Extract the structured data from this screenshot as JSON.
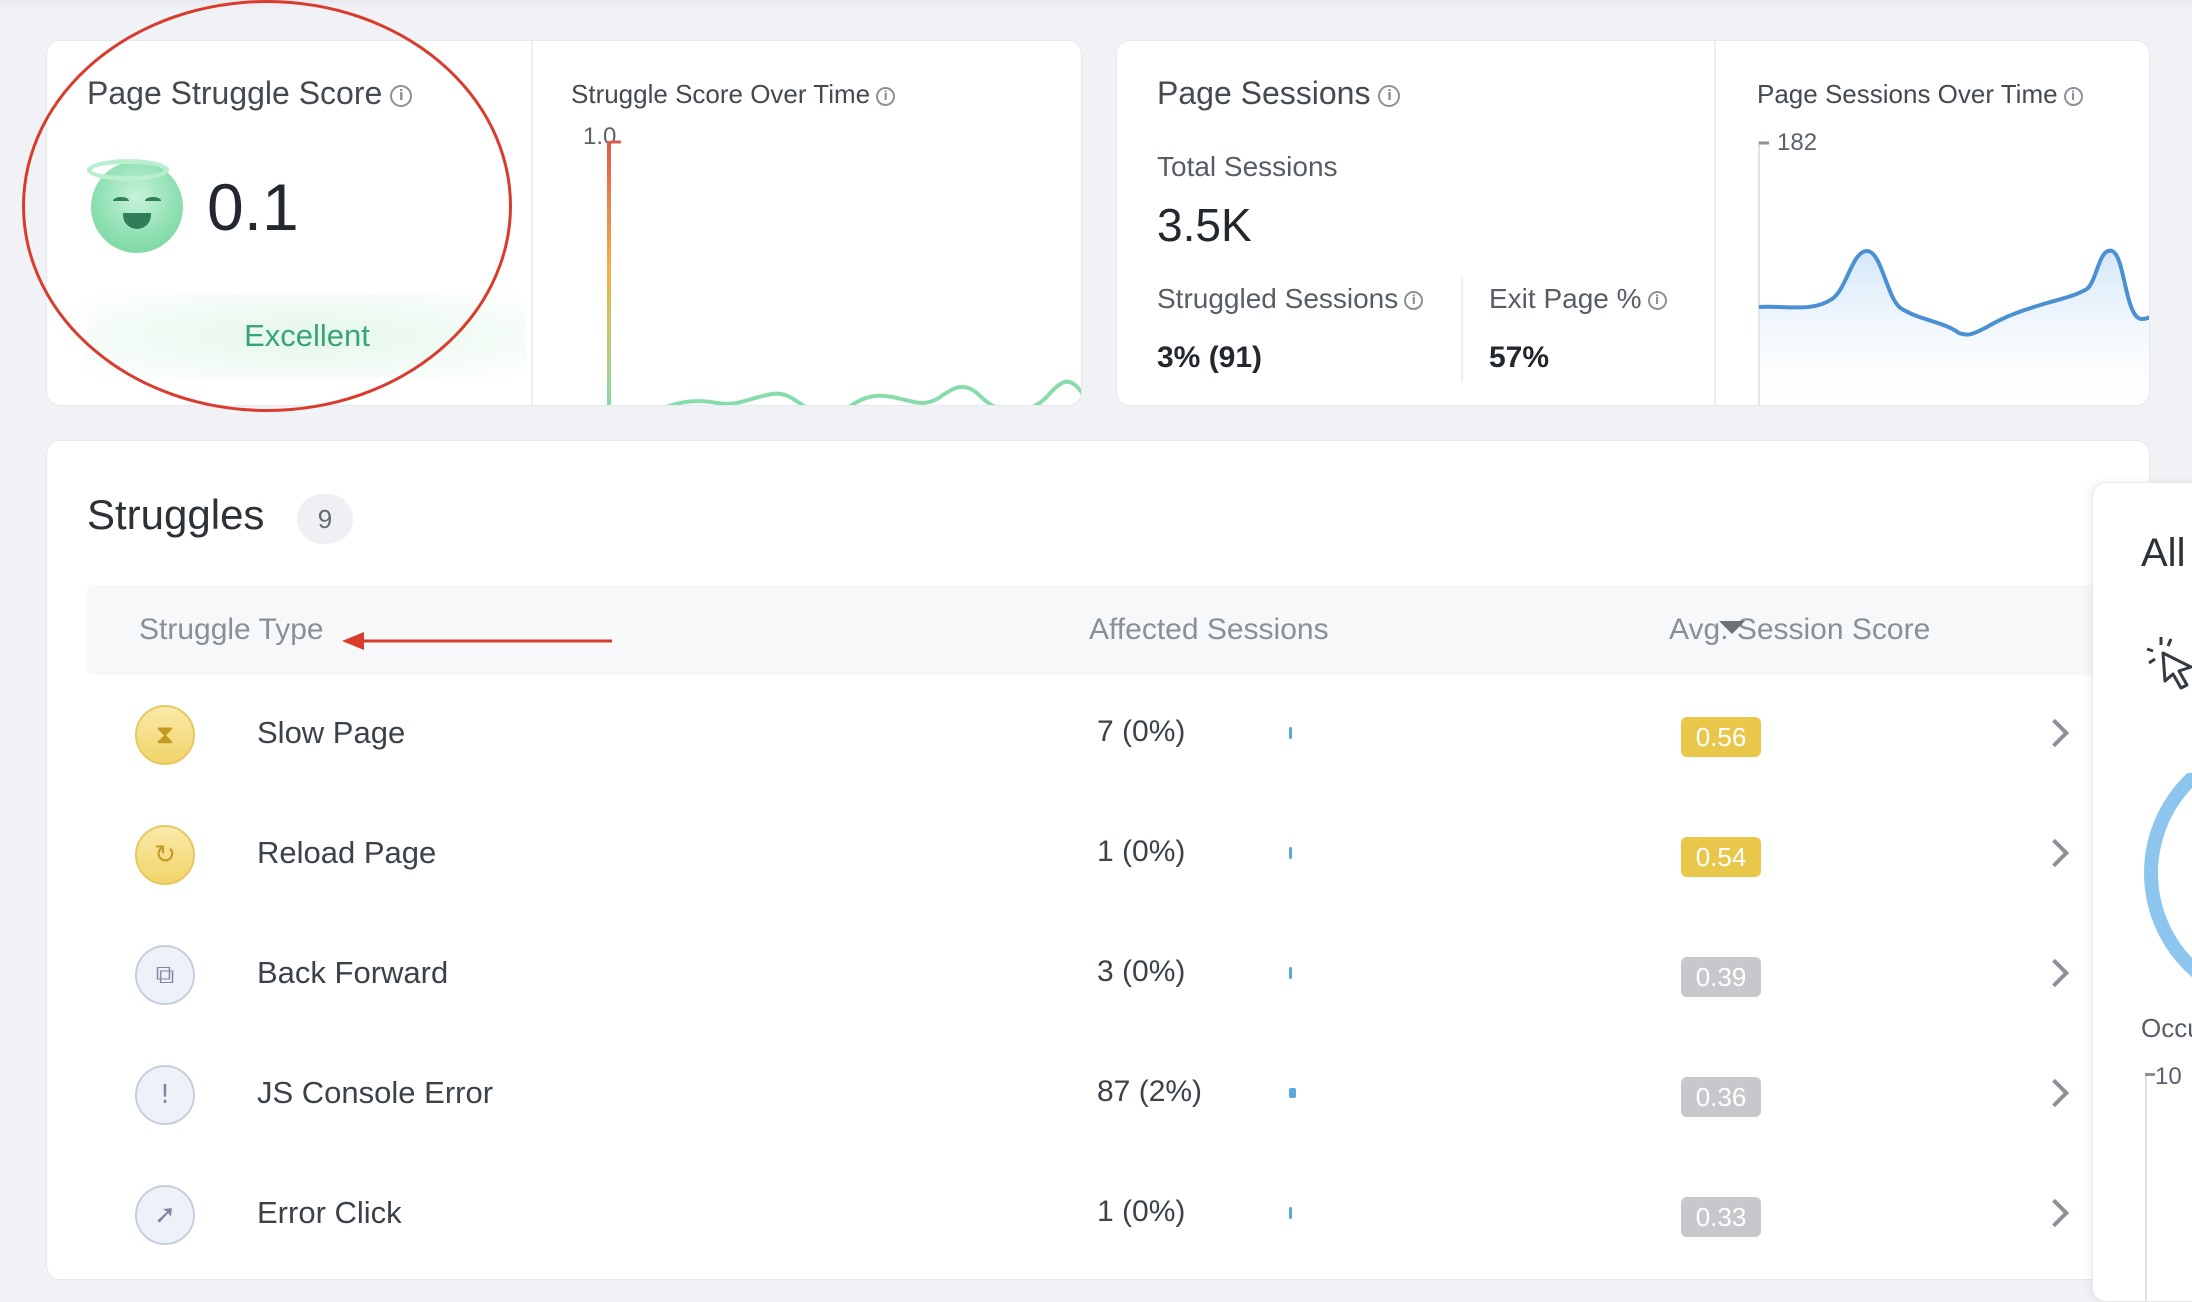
{
  "score_card": {
    "title": "Page Struggle Score",
    "value": "0.1",
    "rating": "Excellent",
    "chart_title": "Struggle Score Over Time",
    "chart_y_max": "1.0",
    "line_color": "#86dcaa"
  },
  "sessions_card": {
    "title": "Page Sessions",
    "total_label": "Total Sessions",
    "total_value": "3.5K",
    "struggled_label": "Struggled Sessions",
    "struggled_value": "3% (91)",
    "exit_label": "Exit Page %",
    "exit_value": "57%",
    "chart_title": "Page Sessions Over Time",
    "chart_y_max": "182",
    "line_color": "#4a90d2"
  },
  "struggles": {
    "title": "Struggles",
    "count": "9",
    "columns": {
      "type": "Struggle Type",
      "sessions": "Affected Sessions",
      "score": "Avg. Session Score"
    },
    "rows": [
      {
        "name": "Slow Page",
        "icon": "hourglass-icon",
        "sessions": "7  (0%)",
        "score": "0.56",
        "score_color": "#e8c74b"
      },
      {
        "name": "Reload Page",
        "icon": "reload-icon",
        "sessions": "1  (0%)",
        "score": "0.54",
        "score_color": "#e8c74b"
      },
      {
        "name": "Back Forward",
        "icon": "back-forward-icon",
        "sessions": "3  (0%)",
        "score": "0.39",
        "score_color": "#c6c8cc"
      },
      {
        "name": "JS Console Error",
        "icon": "error-icon",
        "sessions": "87  (2%)",
        "score": "0.36",
        "score_color": "#c6c8cc"
      },
      {
        "name": "Error Click",
        "icon": "error-click-icon",
        "sessions": "1  (0%)",
        "score": "0.33",
        "score_color": "#c6c8cc"
      }
    ]
  },
  "side_panel": {
    "title": "All",
    "occurrences_label": "Occu",
    "tick": "10"
  },
  "colors": {
    "annotation": "#d93b2c",
    "accent_green": "#3aa574"
  }
}
